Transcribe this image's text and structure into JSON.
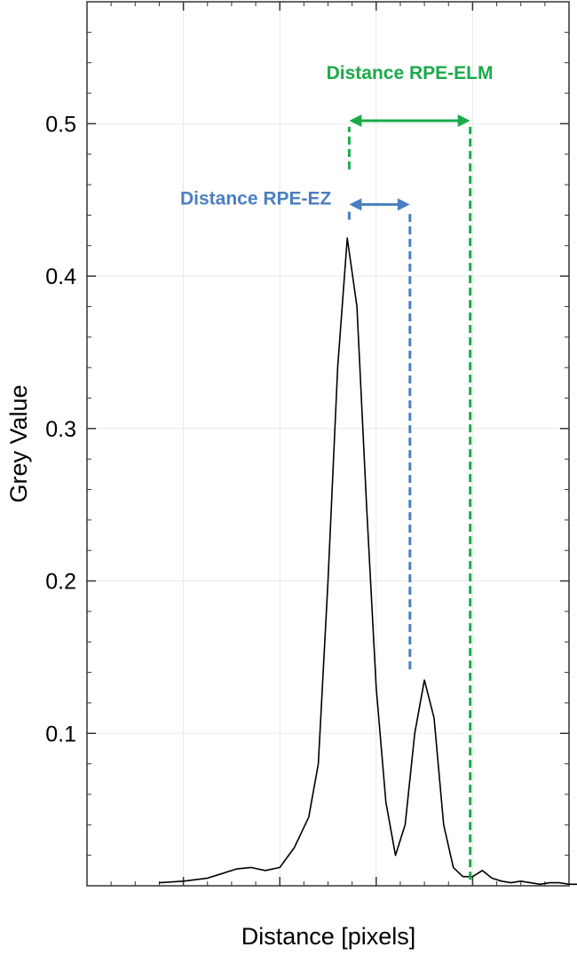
{
  "chart_data": {
    "type": "line",
    "title": "",
    "xlabel": "Distance [pixels]",
    "ylabel": "Grey Value",
    "xlim": [
      0,
      100
    ],
    "ylim": [
      0,
      0.58
    ],
    "y_ticks": [
      0.1,
      0.2,
      0.3,
      0.4,
      0.5
    ],
    "y_tick_labels": [
      "0.1",
      "0.2",
      "0.3",
      "0.4",
      "0.5"
    ],
    "grid": true,
    "series": [
      {
        "color": "#000000",
        "x": [
          15,
          20,
          25,
          28,
          31,
          34,
          37,
          40,
          43,
          46,
          48,
          50,
          52,
          54,
          56,
          58,
          60,
          62,
          64,
          66,
          68,
          70,
          72,
          74,
          76,
          78,
          80,
          82,
          84,
          86,
          88,
          90,
          92,
          94,
          96,
          98,
          100,
          102
        ],
        "y": [
          0.002,
          0.003,
          0.005,
          0.008,
          0.011,
          0.012,
          0.01,
          0.012,
          0.025,
          0.045,
          0.08,
          0.2,
          0.34,
          0.425,
          0.38,
          0.25,
          0.13,
          0.055,
          0.02,
          0.04,
          0.1,
          0.135,
          0.11,
          0.04,
          0.012,
          0.006,
          0.006,
          0.01,
          0.005,
          0.003,
          0.002,
          0.003,
          0.002,
          0.001,
          0.002,
          0.002,
          0.001,
          0.001
        ]
      }
    ],
    "annotations": [
      {
        "label": "Distance RPE-ELM",
        "color": "#1aaa4a",
        "x_start": 54.4,
        "x_end": 79.5,
        "y_arrow": 0.502,
        "left_line_y": [
          0.47,
          0.498
        ],
        "right_line_y": [
          0.004,
          0.498
        ]
      },
      {
        "label": "Distance RPE-EZ",
        "color": "#4a7fc1",
        "x_start": 54.4,
        "x_end": 67,
        "y_arrow": 0.447,
        "left_line_y": [
          0.437,
          0.443
        ],
        "right_line_y": [
          0.142,
          0.443
        ]
      }
    ]
  }
}
